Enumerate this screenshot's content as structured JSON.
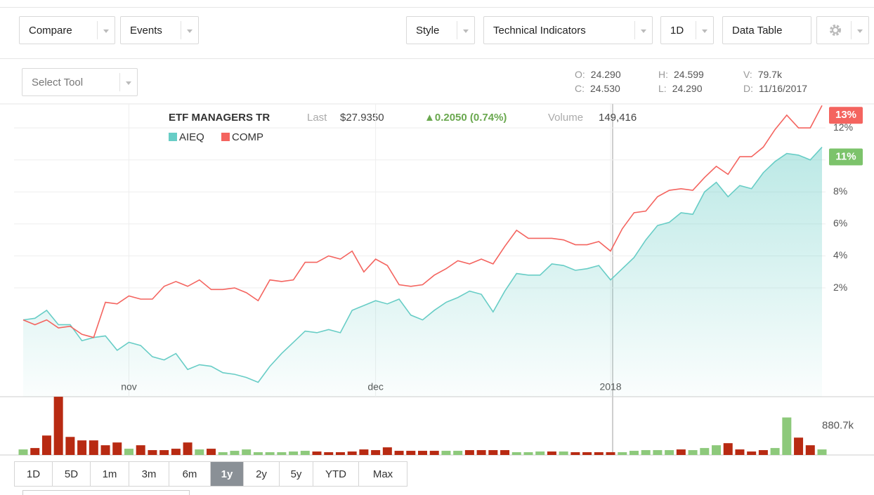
{
  "toolbar": {
    "left": [
      "Compare",
      "Events"
    ],
    "right": [
      "Style",
      "Technical Indicators",
      "1D",
      "Data Table"
    ]
  },
  "select_tool": "Select Tool",
  "ohlc": [
    {
      "label": "O:",
      "value": "24.290"
    },
    {
      "label": "H:",
      "value": "24.599"
    },
    {
      "label": "V:",
      "value": "79.7k"
    },
    {
      "label": "C:",
      "value": "24.530"
    },
    {
      "label": "L:",
      "value": "24.290"
    },
    {
      "label": "D:",
      "value": "11/16/2017"
    }
  ],
  "quote": {
    "name": "ETF MANAGERS TR",
    "last_label": "Last",
    "last": "$27.9350",
    "change": "▲0.2050 (0.74%)",
    "volume_label": "Volume",
    "volume": "149,416"
  },
  "chart_data": [
    {
      "type": "line",
      "categories": [
        null,
        null,
        null,
        null,
        null,
        null,
        null,
        null,
        null,
        "nov",
        null,
        null,
        null,
        null,
        null,
        null,
        null,
        null,
        null,
        null,
        null,
        null,
        null,
        null,
        null,
        null,
        null,
        null,
        null,
        null,
        "dec",
        null,
        null,
        null,
        null,
        null,
        null,
        null,
        null,
        null,
        null,
        null,
        null,
        null,
        null,
        null,
        null,
        null,
        null,
        null,
        "2018",
        null,
        null,
        null,
        null,
        null,
        null,
        null,
        null,
        null,
        null,
        null,
        null,
        null,
        null,
        null,
        null,
        null,
        null
      ],
      "series": [
        {
          "name": "AIEQ",
          "color": "#68cdc6",
          "fill": true,
          "values": [
            0,
            0.1,
            0.6,
            -0.3,
            -0.3,
            -1.3,
            -1.1,
            -1.0,
            -1.9,
            -1.4,
            -1.6,
            -2.3,
            -2.5,
            -2.1,
            -3.1,
            -2.8,
            -2.9,
            -3.3,
            -3.4,
            -3.6,
            -3.9,
            -2.9,
            -2.1,
            -1.4,
            -0.7,
            -0.8,
            -0.6,
            -0.8,
            0.6,
            0.9,
            1.2,
            1.0,
            1.3,
            0.3,
            0,
            0.6,
            1.1,
            1.4,
            1.8,
            1.6,
            0.5,
            1.8,
            2.9,
            2.8,
            2.8,
            3.5,
            3.4,
            3.1,
            3.2,
            3.4,
            2.5,
            3.2,
            3.9,
            5.0,
            5.9,
            6.1,
            6.7,
            6.6,
            8.0,
            8.6,
            7.7,
            8.4,
            8.2,
            9.2,
            9.9,
            10.4,
            10.3,
            10.0,
            10.8
          ],
          "value_labels": [
            null,
            null,
            null,
            null,
            null,
            null,
            null,
            null,
            null,
            null,
            null,
            null,
            null,
            null,
            null,
            null,
            null,
            null,
            null,
            null,
            null,
            null,
            null,
            null,
            null,
            null,
            null,
            null,
            null,
            null,
            null,
            null,
            null,
            null,
            null,
            null,
            null,
            null,
            null,
            null,
            null,
            null,
            null,
            null,
            null,
            null,
            null,
            null,
            null,
            null,
            null,
            null,
            null,
            null,
            null,
            null,
            null,
            null,
            null,
            null,
            null,
            null,
            null,
            null,
            null,
            null,
            null,
            null,
            "11%"
          ],
          "label_color": "#7cc36b"
        },
        {
          "name": "COMP",
          "color": "#f4645f",
          "fill": false,
          "values": [
            0,
            -0.3,
            0,
            -0.5,
            -0.4,
            -0.9,
            -1.1,
            1.1,
            1.0,
            1.5,
            1.3,
            1.3,
            2.1,
            2.4,
            2.1,
            2.5,
            1.9,
            1.9,
            2.0,
            1.7,
            1.2,
            2.5,
            2.4,
            2.5,
            3.6,
            3.6,
            4.0,
            3.8,
            4.3,
            3.0,
            3.8,
            3.4,
            2.2,
            2.1,
            2.2,
            2.8,
            3.2,
            3.7,
            3.5,
            3.8,
            3.5,
            4.6,
            5.6,
            5.1,
            5.1,
            5.1,
            5.0,
            4.7,
            4.7,
            4.9,
            4.3,
            5.7,
            6.7,
            6.8,
            7.7,
            8.1,
            8.2,
            8.1,
            8.9,
            9.6,
            9.1,
            10.2,
            10.2,
            10.8,
            11.9,
            12.8,
            12.0,
            12.0,
            13.4
          ],
          "value_labels": [
            null,
            null,
            null,
            null,
            null,
            null,
            null,
            null,
            null,
            null,
            null,
            null,
            null,
            null,
            null,
            null,
            null,
            null,
            null,
            null,
            null,
            null,
            null,
            null,
            null,
            null,
            null,
            null,
            null,
            null,
            null,
            null,
            null,
            null,
            null,
            null,
            null,
            null,
            null,
            null,
            null,
            null,
            null,
            null,
            null,
            null,
            null,
            null,
            null,
            null,
            null,
            null,
            null,
            null,
            null,
            null,
            null,
            null,
            null,
            null,
            null,
            null,
            null,
            null,
            null,
            null,
            null,
            null,
            "13%"
          ],
          "label_color": "#f4645f"
        }
      ],
      "ylim": [
        -4.8,
        13.5
      ],
      "yticks": [
        {
          "value": 2,
          "label": "2%"
        },
        {
          "value": 4,
          "label": "4%"
        },
        {
          "value": 6,
          "label": "6%"
        },
        {
          "value": 8,
          "label": "8%"
        },
        {
          "value": 10,
          "label": "10%"
        },
        {
          "value": 12,
          "label": "12%"
        }
      ],
      "grid": true
    },
    {
      "type": "bar",
      "values": [
        168000,
        210000,
        588000,
        1760000,
        546000,
        441000,
        441000,
        294000,
        378000,
        189000,
        294000,
        147000,
        147000,
        189000,
        378000,
        168000,
        189000,
        84000,
        126000,
        168000,
        84000,
        84000,
        84000,
        105000,
        126000,
        105000,
        84000,
        84000,
        105000,
        168000,
        147000,
        231000,
        126000,
        126000,
        126000,
        126000,
        126000,
        126000,
        147000,
        147000,
        147000,
        147000,
        84000,
        84000,
        105000,
        105000,
        105000,
        84000,
        84000,
        84000,
        84000,
        84000,
        126000,
        147000,
        147000,
        147000,
        168000,
        147000,
        210000,
        294000,
        357000,
        168000,
        105000,
        147000,
        210000,
        1134000,
        525000,
        294000,
        168000
      ],
      "colors": [
        "#8dc97b",
        "#b82a12",
        "#b82a12",
        "#b82a12",
        "#b82a12",
        "#b82a12",
        "#b82a12",
        "#b82a12",
        "#b82a12",
        "#8dc97b",
        "#b82a12",
        "#b82a12",
        "#b82a12",
        "#b82a12",
        "#b82a12",
        "#8dc97b",
        "#b82a12",
        "#8dc97b",
        "#8dc97b",
        "#8dc97b",
        "#8dc97b",
        "#8dc97b",
        "#8dc97b",
        "#8dc97b",
        "#8dc97b",
        "#b82a12",
        "#b82a12",
        "#b82a12",
        "#b82a12",
        "#b82a12",
        "#b82a12",
        "#b82a12",
        "#b82a12",
        "#b82a12",
        "#b82a12",
        "#b82a12",
        "#8dc97b",
        "#8dc97b",
        "#b82a12",
        "#b82a12",
        "#b82a12",
        "#b82a12",
        "#8dc97b",
        "#8dc97b",
        "#8dc97b",
        "#b82a12",
        "#8dc97b",
        "#b82a12",
        "#b82a12",
        "#b82a12",
        "#b82a12",
        "#8dc97b",
        "#8dc97b",
        "#8dc97b",
        "#8dc97b",
        "#8dc97b",
        "#b82a12",
        "#8dc97b",
        "#8dc97b",
        "#8dc97b",
        "#b82a12",
        "#b82a12",
        "#b82a12",
        "#b82a12",
        "#8dc97b",
        "#8dc97b",
        "#b82a12",
        "#b82a12",
        "#8dc97b"
      ],
      "ylim": [
        0,
        1761400
      ],
      "yticks": [
        {
          "value": 880700,
          "label": "880.7k"
        }
      ]
    }
  ],
  "ranges": {
    "buttons": [
      "1D",
      "5D",
      "1m",
      "3m",
      "6m",
      "1y",
      "2y",
      "5y",
      "YTD",
      "Max"
    ],
    "selected": 5
  }
}
